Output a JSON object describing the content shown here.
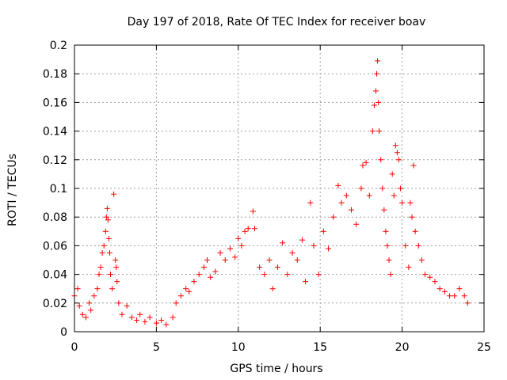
{
  "chart_data": {
    "type": "scatter",
    "title": "Day 197 of 2018, Rate Of TEC Index for receiver boav",
    "xlabel": "GPS time / hours",
    "ylabel": "ROTI / TECUs",
    "xlim": [
      0,
      25
    ],
    "ylim": [
      0,
      0.2
    ],
    "xticks": [
      "0",
      "5",
      "10",
      "15",
      "20",
      "25"
    ],
    "yticks": [
      "0",
      "0.02",
      "0.04",
      "0.06",
      "0.08",
      "0.1",
      "0.12",
      "0.14",
      "0.16",
      "0.18",
      "0.2"
    ],
    "grid": true,
    "marker": "+",
    "color": "#ff0000",
    "series": [
      {
        "points": [
          [
            0.0,
            0.025
          ],
          [
            0.2,
            0.03
          ],
          [
            0.3,
            0.018
          ],
          [
            0.5,
            0.012
          ],
          [
            0.7,
            0.01
          ],
          [
            0.9,
            0.02
          ],
          [
            1.0,
            0.015
          ],
          [
            1.2,
            0.025
          ],
          [
            1.4,
            0.03
          ],
          [
            1.5,
            0.04
          ],
          [
            1.6,
            0.045
          ],
          [
            1.7,
            0.055
          ],
          [
            1.8,
            0.06
          ],
          [
            1.9,
            0.07
          ],
          [
            1.95,
            0.08
          ],
          [
            2.0,
            0.086
          ],
          [
            2.05,
            0.078
          ],
          [
            2.1,
            0.065
          ],
          [
            2.15,
            0.055
          ],
          [
            2.2,
            0.04
          ],
          [
            2.3,
            0.03
          ],
          [
            2.4,
            0.096
          ],
          [
            2.5,
            0.05
          ],
          [
            2.55,
            0.045
          ],
          [
            2.6,
            0.035
          ],
          [
            2.7,
            0.02
          ],
          [
            2.9,
            0.012
          ],
          [
            3.2,
            0.018
          ],
          [
            3.5,
            0.01
          ],
          [
            3.8,
            0.008
          ],
          [
            4.0,
            0.012
          ],
          [
            4.3,
            0.007
          ],
          [
            4.6,
            0.01
          ],
          [
            5.0,
            0.006
          ],
          [
            5.3,
            0.008
          ],
          [
            5.6,
            0.005
          ],
          [
            6.0,
            0.01
          ],
          [
            6.2,
            0.02
          ],
          [
            6.5,
            0.025
          ],
          [
            6.8,
            0.03
          ],
          [
            7.0,
            0.028
          ],
          [
            7.3,
            0.035
          ],
          [
            7.6,
            0.04
          ],
          [
            7.9,
            0.045
          ],
          [
            8.1,
            0.05
          ],
          [
            8.3,
            0.038
          ],
          [
            8.6,
            0.042
          ],
          [
            8.9,
            0.055
          ],
          [
            9.2,
            0.05
          ],
          [
            9.5,
            0.058
          ],
          [
            9.8,
            0.052
          ],
          [
            10.0,
            0.065
          ],
          [
            10.2,
            0.06
          ],
          [
            10.4,
            0.07
          ],
          [
            10.6,
            0.072
          ],
          [
            10.9,
            0.084
          ],
          [
            11.0,
            0.072
          ],
          [
            11.3,
            0.045
          ],
          [
            11.6,
            0.04
          ],
          [
            11.9,
            0.05
          ],
          [
            12.1,
            0.03
          ],
          [
            12.4,
            0.045
          ],
          [
            12.7,
            0.062
          ],
          [
            13.0,
            0.04
          ],
          [
            13.3,
            0.055
          ],
          [
            13.6,
            0.05
          ],
          [
            13.9,
            0.064
          ],
          [
            14.1,
            0.035
          ],
          [
            14.4,
            0.09
          ],
          [
            14.6,
            0.06
          ],
          [
            14.9,
            0.04
          ],
          [
            15.2,
            0.07
          ],
          [
            15.5,
            0.058
          ],
          [
            15.8,
            0.08
          ],
          [
            16.1,
            0.102
          ],
          [
            16.3,
            0.09
          ],
          [
            16.6,
            0.095
          ],
          [
            16.9,
            0.085
          ],
          [
            17.2,
            0.075
          ],
          [
            17.5,
            0.1
          ],
          [
            17.6,
            0.116
          ],
          [
            17.8,
            0.118
          ],
          [
            18.0,
            0.095
          ],
          [
            18.2,
            0.14
          ],
          [
            18.3,
            0.158
          ],
          [
            18.4,
            0.168
          ],
          [
            18.45,
            0.18
          ],
          [
            18.5,
            0.189
          ],
          [
            18.55,
            0.16
          ],
          [
            18.6,
            0.14
          ],
          [
            18.7,
            0.12
          ],
          [
            18.8,
            0.1
          ],
          [
            18.9,
            0.085
          ],
          [
            19.0,
            0.07
          ],
          [
            19.1,
            0.06
          ],
          [
            19.2,
            0.05
          ],
          [
            19.3,
            0.04
          ],
          [
            19.4,
            0.11
          ],
          [
            19.5,
            0.095
          ],
          [
            19.6,
            0.13
          ],
          [
            19.7,
            0.125
          ],
          [
            19.8,
            0.12
          ],
          [
            19.9,
            0.1
          ],
          [
            20.0,
            0.09
          ],
          [
            20.2,
            0.06
          ],
          [
            20.4,
            0.045
          ],
          [
            20.5,
            0.09
          ],
          [
            20.6,
            0.08
          ],
          [
            20.7,
            0.116
          ],
          [
            20.8,
            0.07
          ],
          [
            21.0,
            0.06
          ],
          [
            21.2,
            0.05
          ],
          [
            21.4,
            0.04
          ],
          [
            21.7,
            0.038
          ],
          [
            22.0,
            0.035
          ],
          [
            22.3,
            0.03
          ],
          [
            22.6,
            0.028
          ],
          [
            22.9,
            0.025
          ],
          [
            23.2,
            0.025
          ],
          [
            23.5,
            0.03
          ],
          [
            23.8,
            0.025
          ],
          [
            24.0,
            0.02
          ]
        ]
      }
    ]
  }
}
